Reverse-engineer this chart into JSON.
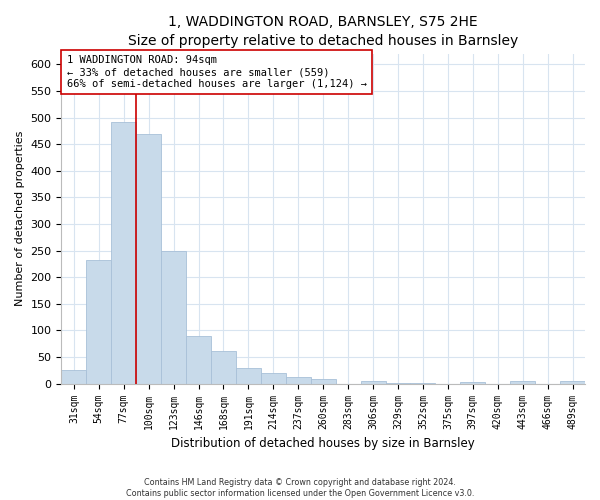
{
  "title": "1, WADDINGTON ROAD, BARNSLEY, S75 2HE",
  "subtitle": "Size of property relative to detached houses in Barnsley",
  "xlabel": "Distribution of detached houses by size in Barnsley",
  "ylabel": "Number of detached properties",
  "bar_labels": [
    "31sqm",
    "54sqm",
    "77sqm",
    "100sqm",
    "123sqm",
    "146sqm",
    "168sqm",
    "191sqm",
    "214sqm",
    "237sqm",
    "260sqm",
    "283sqm",
    "306sqm",
    "329sqm",
    "352sqm",
    "375sqm",
    "397sqm",
    "420sqm",
    "443sqm",
    "466sqm",
    "489sqm"
  ],
  "bar_values": [
    25,
    232,
    492,
    470,
    249,
    89,
    62,
    30,
    21,
    12,
    8,
    0,
    6,
    2,
    1,
    0,
    4,
    0,
    5,
    0,
    5
  ],
  "bar_color": "#c8daea",
  "bar_edge_color": "#a8c0d8",
  "ylim": [
    0,
    620
  ],
  "yticks": [
    0,
    50,
    100,
    150,
    200,
    250,
    300,
    350,
    400,
    450,
    500,
    550,
    600
  ],
  "vline_color": "#cc0000",
  "vline_bar_index": 2,
  "annotation_line1": "1 WADDINGTON ROAD: 94sqm",
  "annotation_line2": "← 33% of detached houses are smaller (559)",
  "annotation_line3": "66% of semi-detached houses are larger (1,124) →",
  "annotation_box_color": "#ffffff",
  "annotation_box_edge": "#cc0000",
  "footer_line1": "Contains HM Land Registry data © Crown copyright and database right 2024.",
  "footer_line2": "Contains public sector information licensed under the Open Government Licence v3.0.",
  "background_color": "#ffffff",
  "grid_color": "#d8e4f0"
}
